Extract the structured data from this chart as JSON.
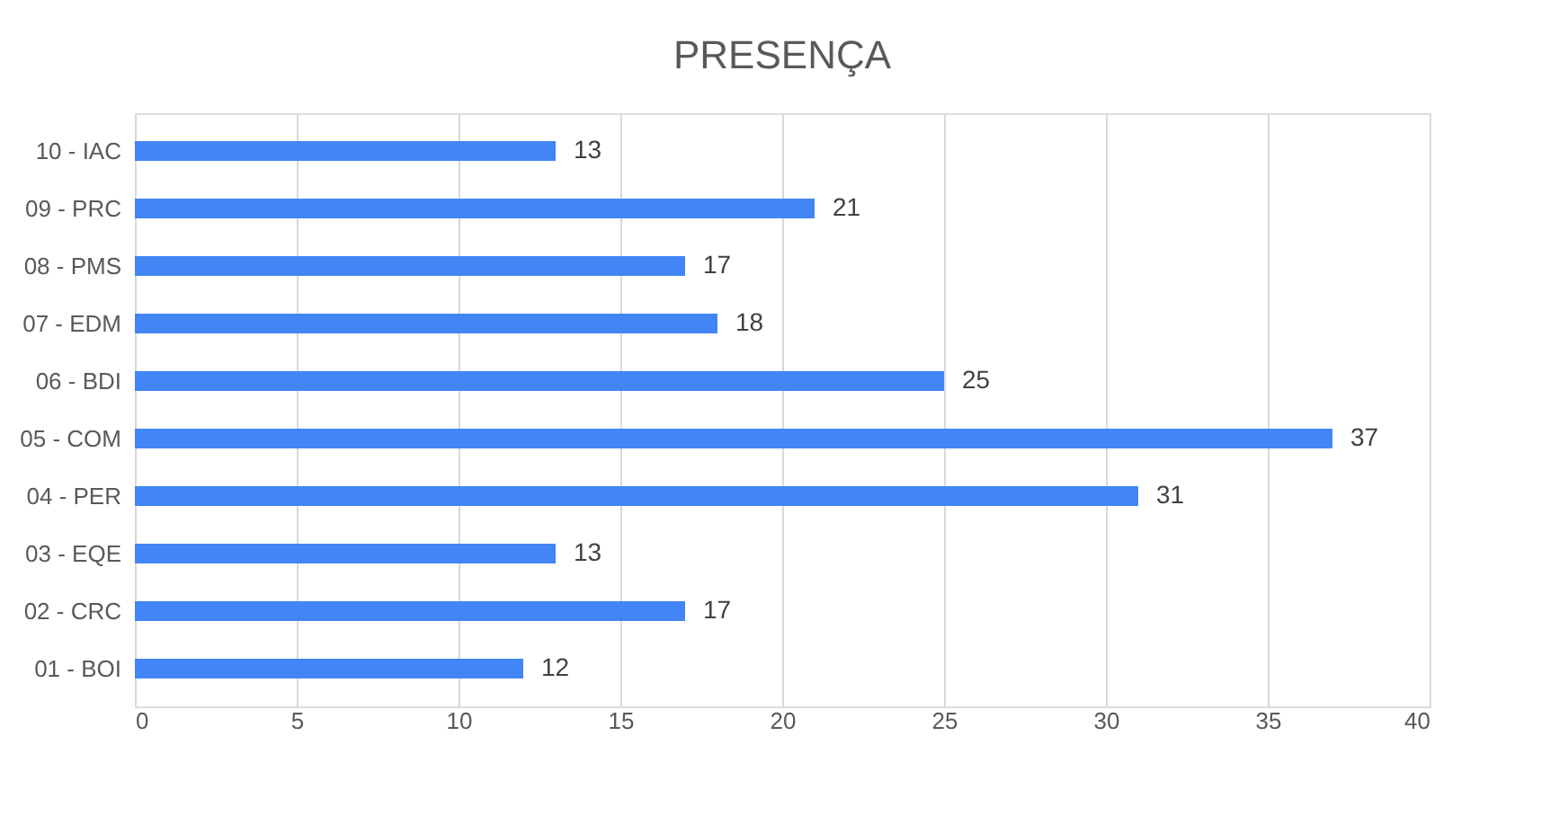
{
  "chart_data": {
    "type": "bar",
    "title": "PRESENÇA",
    "orientation": "horizontal",
    "categories": [
      "10 - IAC",
      "09 - PRC",
      "08 - PMS",
      "07 - EDM",
      "06 - BDI",
      "05 - COM",
      "04 - PER",
      "03 - EQE",
      "02 - CRC",
      "01 - BOI"
    ],
    "values": [
      13,
      21,
      17,
      18,
      25,
      37,
      31,
      13,
      17,
      12
    ],
    "color": "#4285f4",
    "xlim": [
      0,
      40
    ],
    "xticks": [
      0,
      5,
      10,
      15,
      20,
      25,
      30,
      35,
      40
    ],
    "grid": "x",
    "data_labels": true
  }
}
